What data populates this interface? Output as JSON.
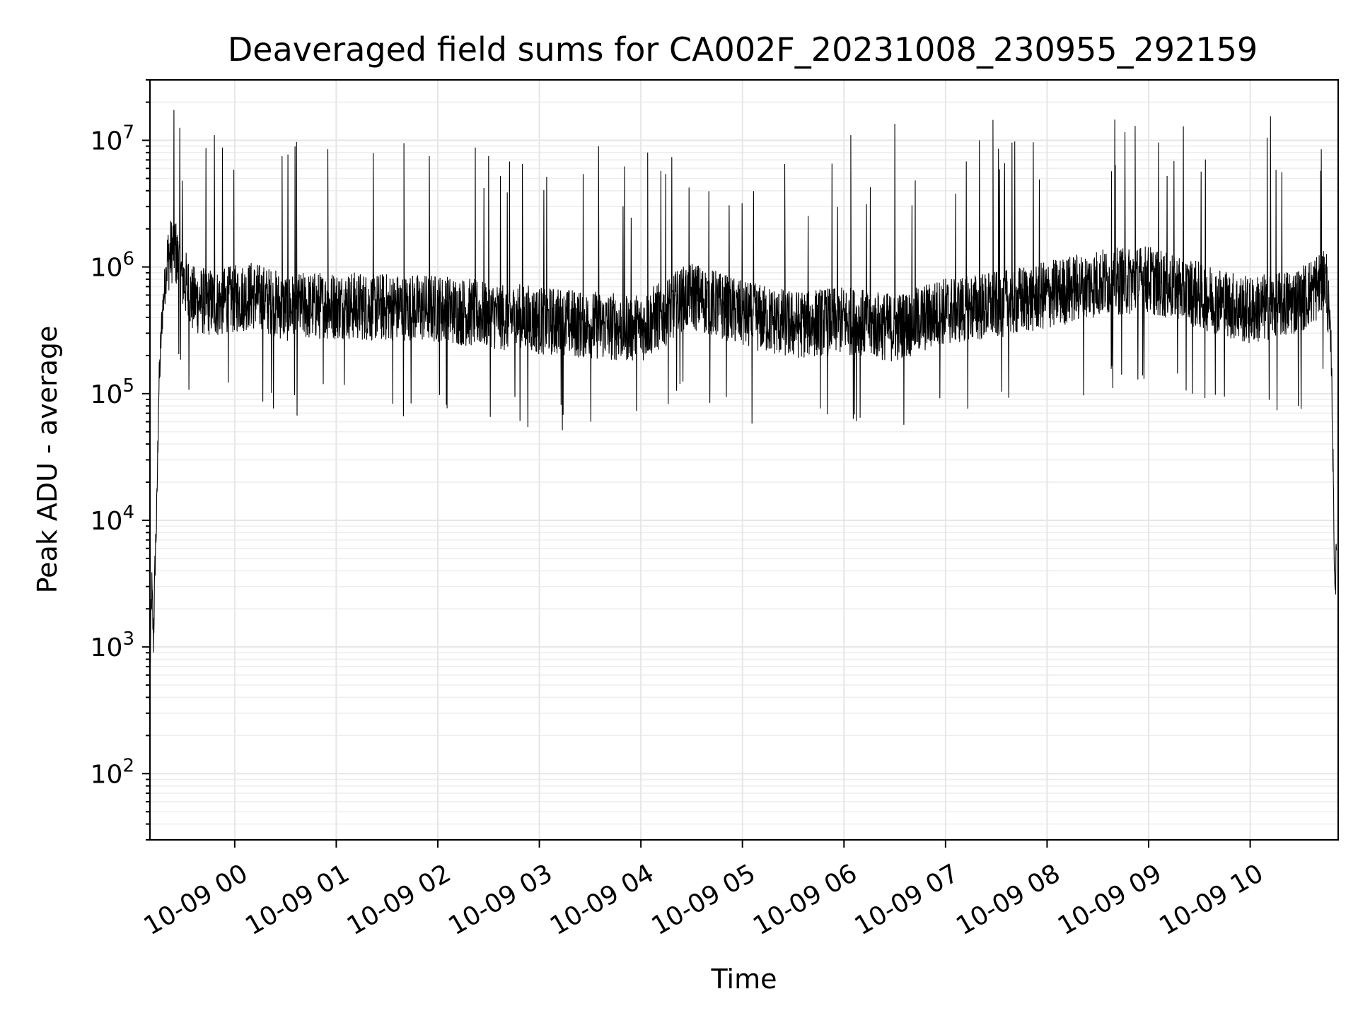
{
  "chart_data": {
    "type": "line",
    "title": "Deaveraged field sums for CA002F_20231008_230955_292159",
    "xlabel": "Time",
    "ylabel": "Peak ADU - average",
    "yscale": "log",
    "ylim": [
      30,
      30000000
    ],
    "xlim": [
      "2023-10-08 23:09:55",
      "2023-10-09 10:52:00"
    ],
    "grid": true,
    "x_ticks": [
      {
        "t": "2023-10-09 00:00",
        "label": "10-09 00"
      },
      {
        "t": "2023-10-09 01:00",
        "label": "10-09 01"
      },
      {
        "t": "2023-10-09 02:00",
        "label": "10-09 02"
      },
      {
        "t": "2023-10-09 03:00",
        "label": "10-09 03"
      },
      {
        "t": "2023-10-09 04:00",
        "label": "10-09 04"
      },
      {
        "t": "2023-10-09 05:00",
        "label": "10-09 05"
      },
      {
        "t": "2023-10-09 06:00",
        "label": "10-09 06"
      },
      {
        "t": "2023-10-09 07:00",
        "label": "10-09 07"
      },
      {
        "t": "2023-10-09 08:00",
        "label": "10-09 08"
      },
      {
        "t": "2023-10-09 09:00",
        "label": "10-09 09"
      },
      {
        "t": "2023-10-09 10:00",
        "label": "10-09 10"
      }
    ],
    "y_ticks": [
      {
        "value": 100,
        "base": "10",
        "exp": "2"
      },
      {
        "value": 1000,
        "base": "10",
        "exp": "3"
      },
      {
        "value": 10000,
        "base": "10",
        "exp": "4"
      },
      {
        "value": 100000,
        "base": "10",
        "exp": "5"
      },
      {
        "value": 1000000,
        "base": "10",
        "exp": "6"
      },
      {
        "value": 10000000,
        "base": "10",
        "exp": "7"
      }
    ],
    "series": [
      {
        "color": "#000000",
        "points": [
          [
            "2023-10-08 23:10",
            700
          ],
          [
            "2023-10-08 23:11",
            3000
          ],
          [
            "2023-10-08 23:12",
            1100
          ],
          [
            "2023-10-08 23:13",
            5000
          ],
          [
            "2023-10-08 23:14",
            12000
          ],
          [
            "2023-10-08 23:15",
            90000
          ],
          [
            "2023-10-08 23:17",
            400000
          ],
          [
            "2023-10-08 23:20",
            1100000
          ],
          [
            "2023-10-08 23:24",
            1500000
          ],
          [
            "2023-10-08 23:28",
            900000
          ],
          [
            "2023-10-08 23:35",
            550000
          ],
          [
            "2023-10-08 23:50",
            520000
          ],
          [
            "2023-10-09 00:10",
            600000
          ],
          [
            "2023-10-09 00:30",
            480000
          ],
          [
            "2023-10-09 01:00",
            500000
          ],
          [
            "2023-10-09 01:30",
            480000
          ],
          [
            "2023-10-09 02:00",
            470000
          ],
          [
            "2023-10-09 02:30",
            420000
          ],
          [
            "2023-10-09 03:00",
            380000
          ],
          [
            "2023-10-09 03:30",
            350000
          ],
          [
            "2023-10-09 04:00",
            330000
          ],
          [
            "2023-10-09 04:30",
            600000
          ],
          [
            "2023-10-09 05:00",
            420000
          ],
          [
            "2023-10-09 05:30",
            350000
          ],
          [
            "2023-10-09 06:00",
            380000
          ],
          [
            "2023-10-09 06:30",
            330000
          ],
          [
            "2023-10-09 07:00",
            450000
          ],
          [
            "2023-10-09 07:30",
            500000
          ],
          [
            "2023-10-09 08:00",
            600000
          ],
          [
            "2023-10-09 08:30",
            750000
          ],
          [
            "2023-10-09 09:00",
            800000
          ],
          [
            "2023-10-09 09:30",
            600000
          ],
          [
            "2023-10-09 10:00",
            450000
          ],
          [
            "2023-10-09 10:30",
            550000
          ],
          [
            "2023-10-09 10:45",
            800000
          ],
          [
            "2023-10-09 10:48",
            200000
          ],
          [
            "2023-10-09 10:49",
            25000
          ],
          [
            "2023-10-09 10:50",
            3000
          ],
          [
            "2023-10-09 10:51",
            5000
          ]
        ],
        "noise_band": "values fluctuate roughly between 1e5 and 2e6 across the plateau",
        "spikes": [
          [
            "2023-10-08 23:29",
            4800000
          ],
          [
            "2023-10-08 23:48",
            11000000
          ],
          [
            "2023-10-09 00:28",
            7500000
          ],
          [
            "2023-10-09 00:55",
            8500000
          ],
          [
            "2023-10-09 01:40",
            9500000
          ],
          [
            "2023-10-09 01:55",
            7500000
          ],
          [
            "2023-10-09 02:30",
            7500000
          ],
          [
            "2023-10-09 02:50",
            6500000
          ],
          [
            "2023-10-09 03:35",
            9000000
          ],
          [
            "2023-10-09 04:04",
            8000000
          ],
          [
            "2023-10-09 05:25",
            6500000
          ],
          [
            "2023-10-09 06:04",
            11000000
          ],
          [
            "2023-10-09 06:30",
            13500000
          ],
          [
            "2023-10-09 07:20",
            10000000
          ],
          [
            "2023-10-09 07:28",
            14500000
          ],
          [
            "2023-10-09 08:52",
            13000000
          ],
          [
            "2023-10-09 10:10",
            10500000
          ],
          [
            "2023-10-09 10:12",
            15500000
          ],
          [
            "2023-10-09 10:42",
            8500000
          ]
        ]
      }
    ]
  }
}
